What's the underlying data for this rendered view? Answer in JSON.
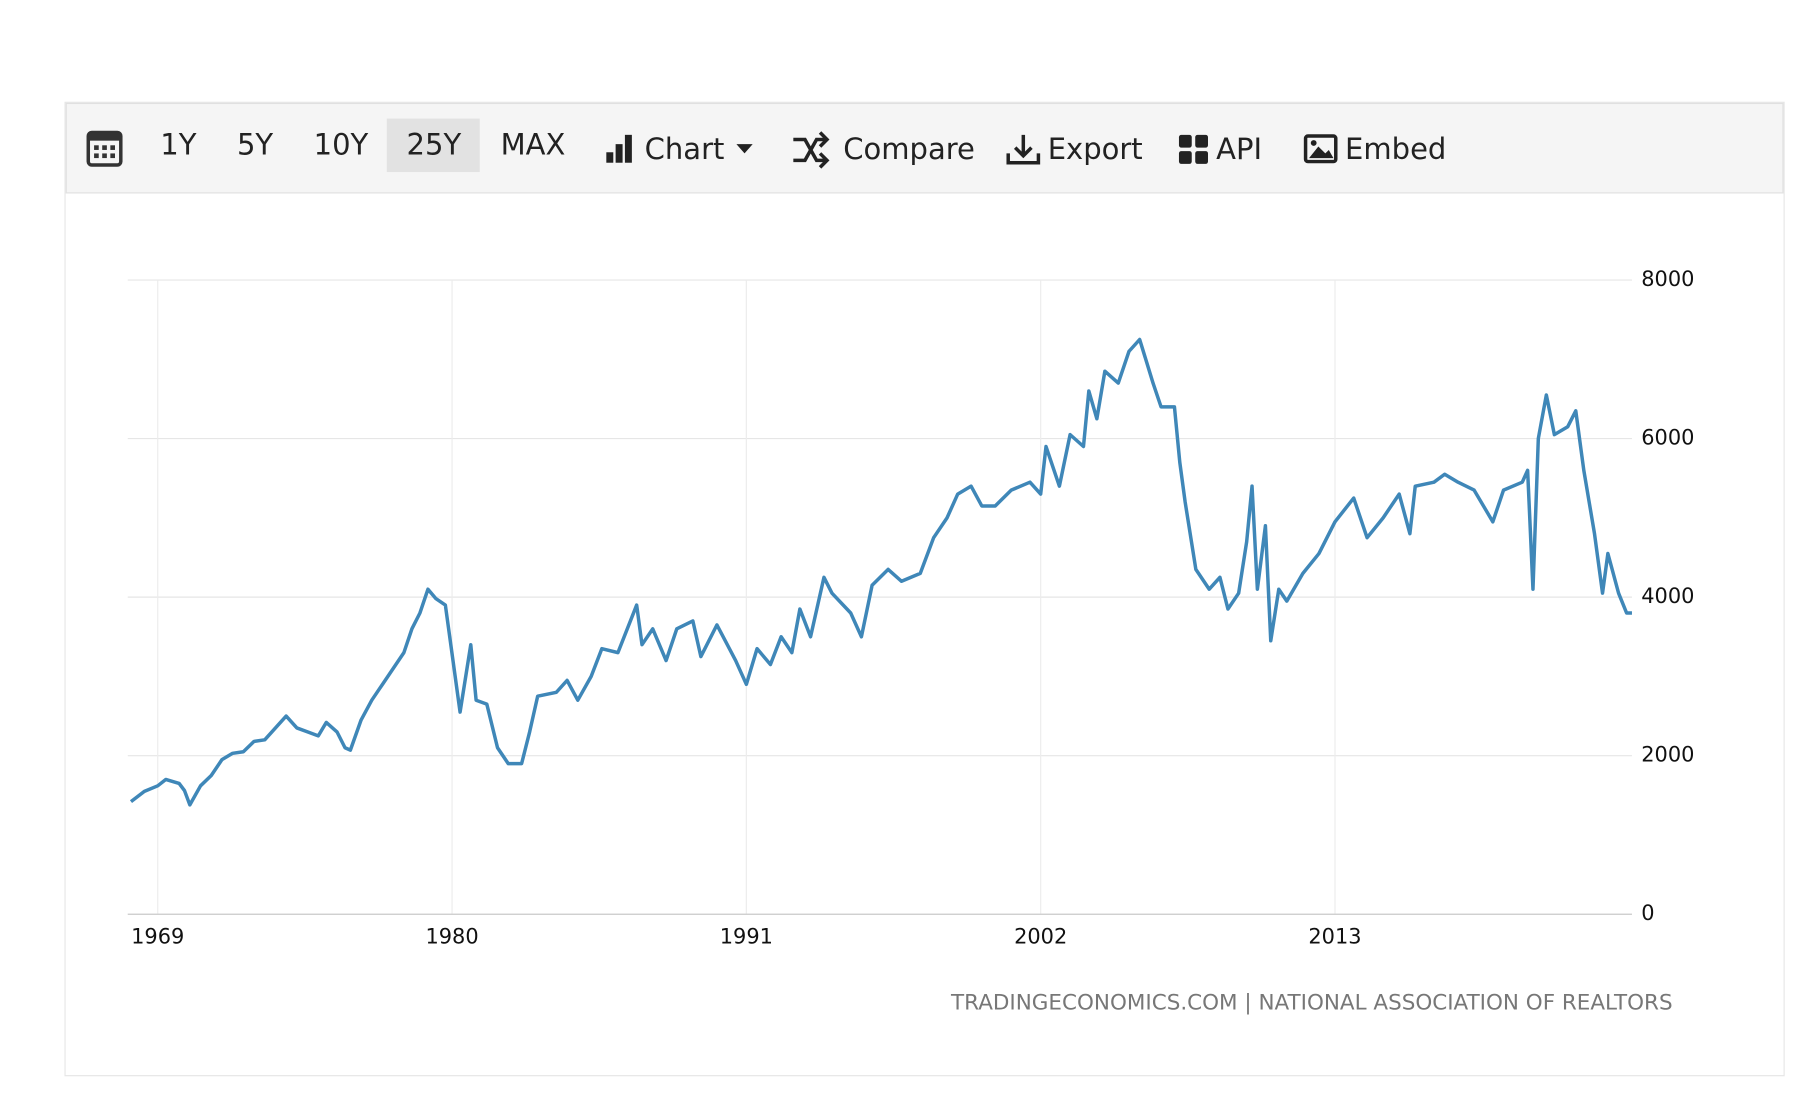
{
  "toolbar": {
    "ranges": [
      "1Y",
      "5Y",
      "10Y",
      "25Y",
      "MAX"
    ],
    "active_range": "25Y",
    "buttons": [
      "Chart",
      "Compare",
      "Export",
      "API",
      "Embed"
    ]
  },
  "chart_data": {
    "type": "line",
    "source": "TRADINGECONOMICS.COM | NATIONAL ASSOCIATION OF REALTORS",
    "xlim": [
      1967.88,
      2024.1
    ],
    "xticks": [
      1969,
      1980,
      1991,
      2002,
      2013
    ],
    "ylim": [
      0,
      8000
    ],
    "yticks": [
      0,
      2000,
      4000,
      6000,
      8000
    ],
    "grid": true,
    "series": [
      {
        "color": "#3f87b8",
        "x": [
          1968.0,
          1968.5,
          1969.0,
          1969.3,
          1969.8,
          1970.0,
          1970.2,
          1970.6,
          1971.0,
          1971.4,
          1971.8,
          1972.2,
          1972.6,
          1973.0,
          1973.4,
          1973.8,
          1974.2,
          1974.6,
          1975.0,
          1975.3,
          1975.7,
          1976.0,
          1976.2,
          1976.6,
          1977.0,
          1977.4,
          1977.8,
          1978.2,
          1978.5,
          1978.8,
          1979.1,
          1979.4,
          1979.75,
          1980.3,
          1980.7,
          1980.9,
          1981.3,
          1981.7,
          1982.1,
          1982.6,
          1982.9,
          1983.2,
          1983.9,
          1984.3,
          1984.7,
          1985.2,
          1985.6,
          1986.2,
          1986.9,
          1987.1,
          1987.5,
          1988.0,
          1988.4,
          1989.0,
          1989.3,
          1989.9,
          1990.6,
          1991.0,
          1991.4,
          1991.9,
          1992.3,
          1992.7,
          1993.0,
          1993.4,
          1993.9,
          1994.2,
          1994.9,
          1995.3,
          1995.7,
          1996.3,
          1996.8,
          1997.5,
          1998.0,
          1998.5,
          1998.9,
          1999.4,
          1999.8,
          2000.3,
          2000.9,
          2001.6,
          2002.0,
          2002.2,
          2002.7,
          2003.1,
          2003.6,
          2003.8,
          2004.1,
          2004.4,
          2004.9,
          2005.3,
          2005.7,
          2006.2,
          2006.5,
          2007.0,
          2007.2,
          2007.4,
          2007.8,
          2008.3,
          2008.7,
          2009.0,
          2009.4,
          2009.7,
          2009.9,
          2010.1,
          2010.4,
          2010.6,
          2010.9,
          2011.2,
          2011.8,
          2012.4,
          2013.0,
          2013.7,
          2014.2,
          2014.8,
          2015.4,
          2015.8,
          2016.0,
          2016.7,
          2017.1,
          2017.6,
          2018.2,
          2018.9,
          2019.3,
          2020.0,
          2020.2,
          2020.4,
          2020.6,
          2020.9,
          2021.2,
          2021.7,
          2022.0,
          2022.3,
          2022.7,
          2023.0,
          2023.2,
          2023.6,
          2023.9,
          2024.1
        ],
        "values": [
          1420,
          1550,
          1620,
          1700,
          1650,
          1560,
          1380,
          1620,
          1750,
          1950,
          2030,
          2050,
          2180,
          2200,
          2350,
          2500,
          2350,
          2300,
          2250,
          2420,
          2300,
          2100,
          2070,
          2450,
          2700,
          2900,
          3100,
          3300,
          3600,
          3800,
          4100,
          3980,
          3900,
          2550,
          3400,
          2700,
          2650,
          2100,
          1900,
          1900,
          2300,
          2750,
          2800,
          2950,
          2700,
          3000,
          3350,
          3300,
          3900,
          3400,
          3600,
          3200,
          3600,
          3700,
          3250,
          3650,
          3200,
          2900,
          3350,
          3150,
          3500,
          3300,
          3850,
          3500,
          4250,
          4050,
          3800,
          3500,
          4150,
          4350,
          4200,
          4300,
          4750,
          5000,
          5300,
          5400,
          5150,
          5150,
          5350,
          5450,
          5300,
          5900,
          5400,
          6050,
          5900,
          6600,
          6250,
          6850,
          6700,
          7100,
          7250,
          6700,
          6400,
          6400,
          5700,
          5200,
          4350,
          4100,
          4250,
          3850,
          4050,
          4700,
          5400,
          4100,
          4900,
          3450,
          4100,
          3950,
          4300,
          4550,
          4950,
          5250,
          4750,
          5000,
          5300,
          4800,
          5400,
          5450,
          5550,
          5450,
          5350,
          4950,
          5350,
          5450,
          5600,
          4100,
          6000,
          6550,
          6050,
          6150,
          6350,
          5600,
          4800,
          4050,
          4550,
          4050,
          3800,
          3800
        ]
      }
    ]
  }
}
